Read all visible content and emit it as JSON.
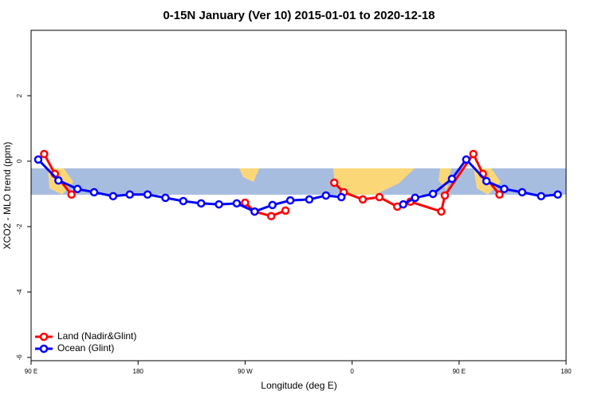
{
  "chart_data": {
    "type": "line",
    "title": "0-15N January (Ver 10)   2015-01-01 to 2020-12-18",
    "xlabel": "Longitude (deg E)",
    "ylabel": "XCO2 - MLO trend (ppm)",
    "xlim": [
      90,
      540
    ],
    "xticks": [
      {
        "value": 90,
        "label": "90 E"
      },
      {
        "value": 180,
        "label": "180"
      },
      {
        "value": 270,
        "label": "90 W"
      },
      {
        "value": 360,
        "label": "0"
      },
      {
        "value": 450,
        "label": "90 E"
      },
      {
        "value": 540,
        "label": "180"
      }
    ],
    "ylim": [
      -6.1,
      4
    ],
    "yticks": [
      -6,
      -4,
      -2,
      0,
      2
    ],
    "legend": "bottom-left",
    "series": [
      {
        "name": "Land (Nadir&Glint)",
        "color": "#ff0000",
        "x": [
          101,
          110,
          124,
          null,
          270,
          278,
          292,
          304,
          null,
          345,
          353,
          369,
          383,
          398,
          409,
          435,
          438,
          462,
          470,
          484
        ],
        "values": [
          0.22,
          -0.39,
          -1.02,
          null,
          -1.27,
          -1.54,
          -1.68,
          -1.51,
          null,
          -0.66,
          -0.95,
          -1.17,
          -1.1,
          -1.39,
          -1.24,
          -1.54,
          -1.05,
          0.22,
          -0.39,
          -1.02
        ]
      },
      {
        "name": "Ocean (Glint)",
        "color": "#0000ff",
        "x": [
          96,
          113,
          129,
          143,
          159,
          173,
          188,
          203,
          218,
          233,
          248,
          263,
          278,
          293,
          308,
          324,
          338,
          351,
          null,
          403,
          413,
          428,
          444,
          456,
          473,
          488,
          503,
          519,
          533
        ],
        "values": [
          0.05,
          -0.59,
          -0.85,
          -0.95,
          -1.07,
          -1.02,
          -1.02,
          -1.12,
          -1.22,
          -1.29,
          -1.32,
          -1.29,
          -1.54,
          -1.34,
          -1.2,
          -1.17,
          -1.05,
          -1.1,
          null,
          -1.32,
          -1.12,
          -1.0,
          -0.54,
          0.05,
          -0.61,
          -0.85,
          -0.95,
          -1.07,
          -1.02
        ]
      }
    ]
  }
}
